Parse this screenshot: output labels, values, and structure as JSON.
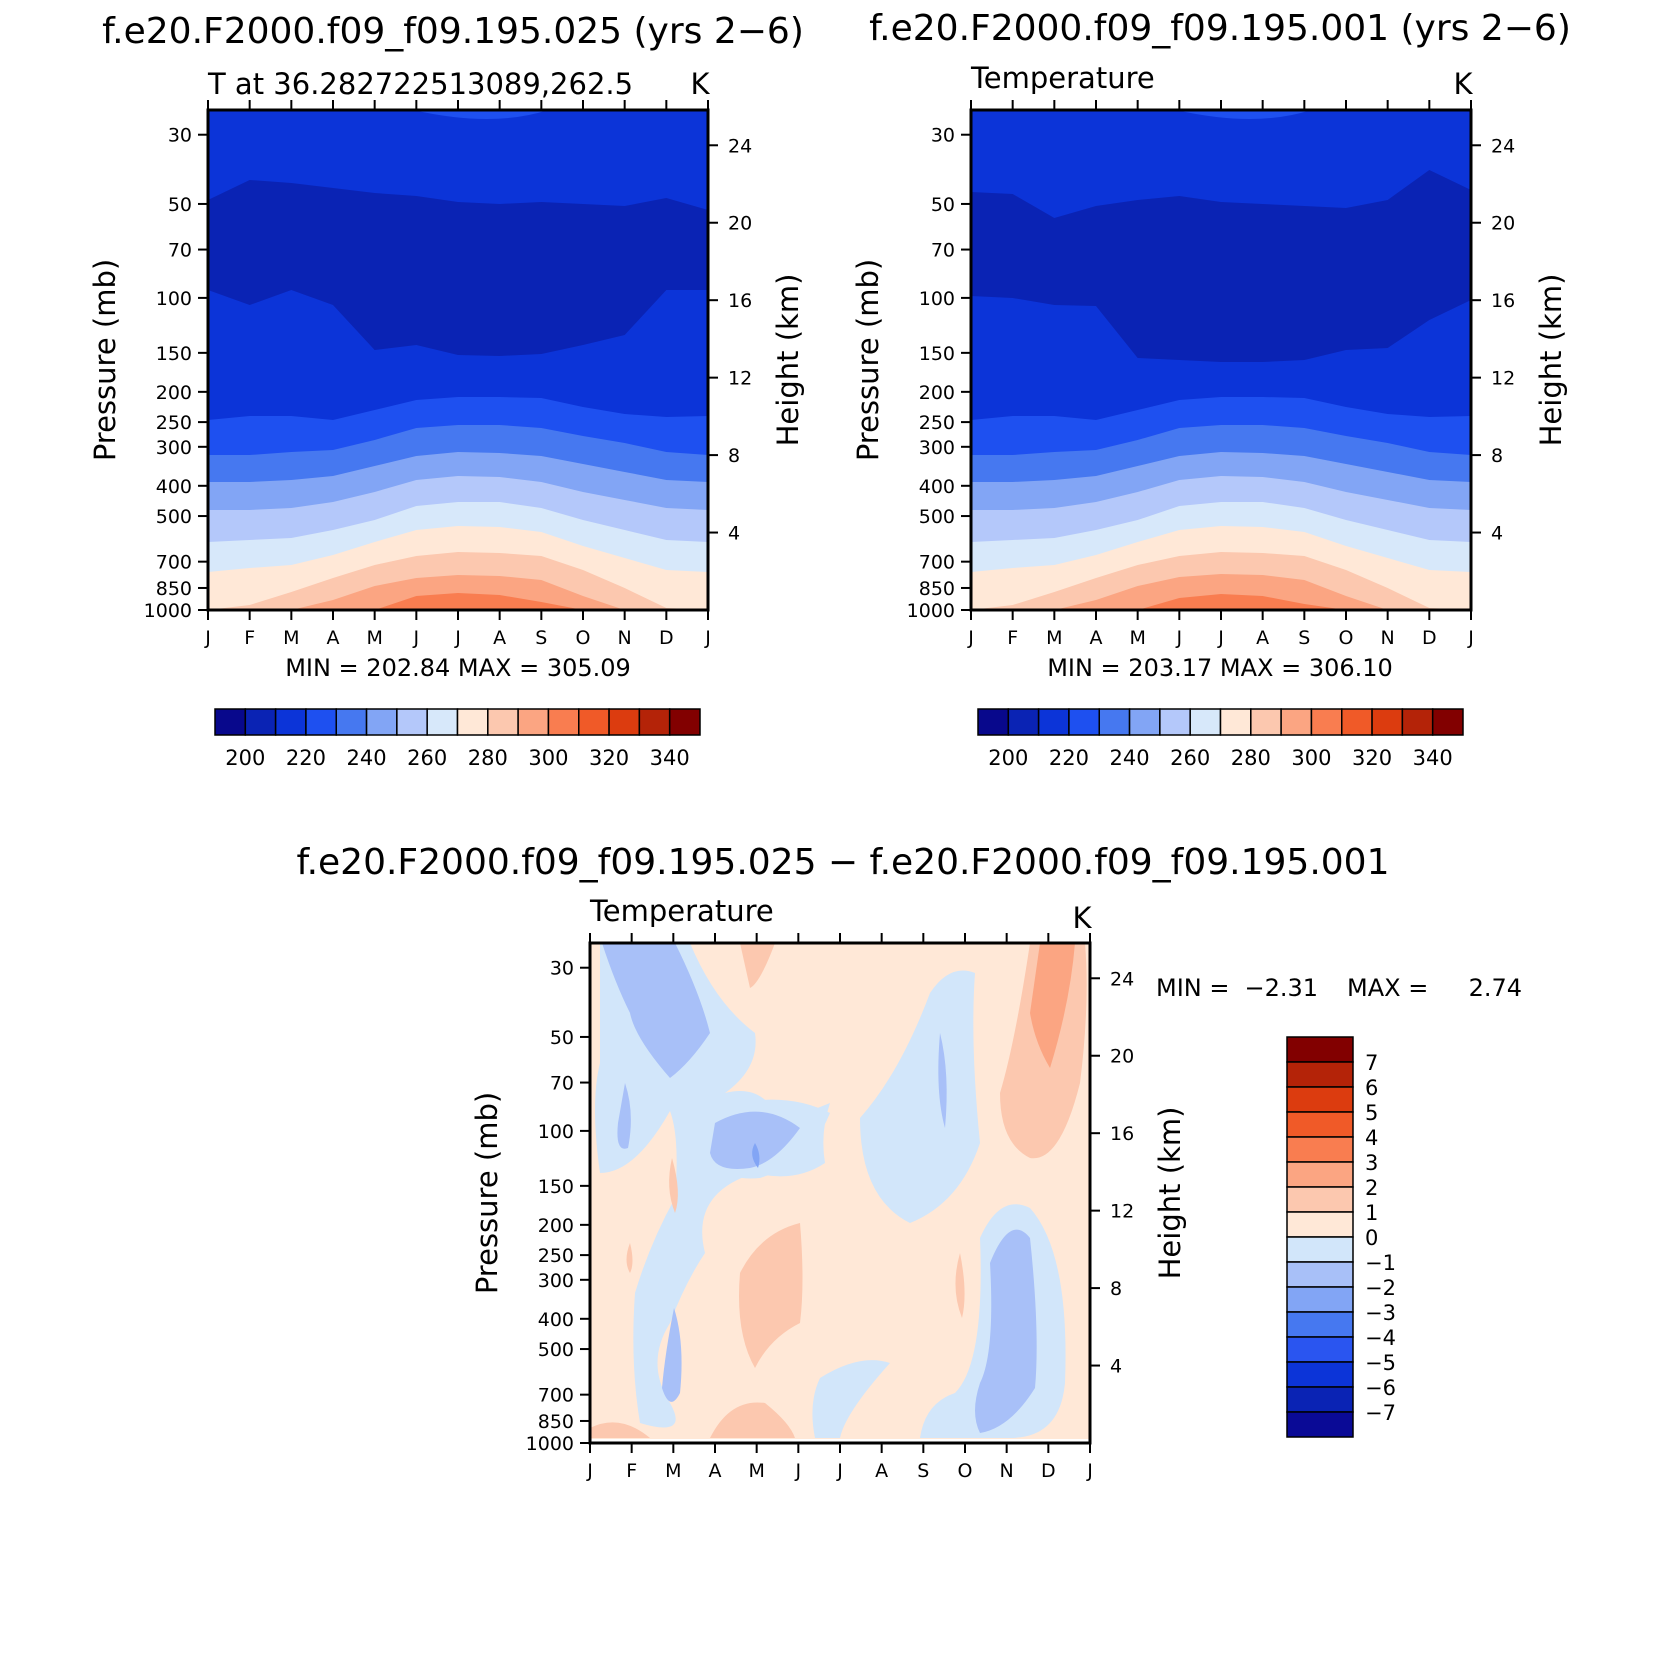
{
  "panels": {
    "left": {
      "title": "f.e20.F2000.f09_f09.195.025 (yrs 2−6)",
      "subtitle": "T at 36.282722513089,262.5",
      "units": "K",
      "ylabel": "Pressure (mb)",
      "ylabel_right": "Height (km)",
      "stats": "MIN = 202.84 MAX = 305.09"
    },
    "right": {
      "title": "f.e20.F2000.f09_f09.195.001 (yrs 2−6)",
      "subtitle": "Temperature",
      "units": "K",
      "ylabel": "Pressure (mb)",
      "ylabel_right": "Height (km)",
      "stats": "MIN = 203.17 MAX = 306.10"
    },
    "diff": {
      "title": "f.e20.F2000.f09_f09.195.025 − f.e20.F2000.f09_f09.195.001",
      "subtitle": "Temperature",
      "units": "K",
      "ylabel": "Pressure (mb)",
      "ylabel_right": "Height (km)",
      "min_label": "MIN =",
      "min_value": "−2.31",
      "max_label": "MAX =",
      "max_value": "2.74"
    }
  },
  "colors": {
    "temp_palette": [
      "#08088c",
      "#0a23b4",
      "#0c34d8",
      "#1e50f0",
      "#4678f0",
      "#82a5f5",
      "#b4c8fa",
      "#d7e8fa",
      "#ffe8d7",
      "#fcc8af",
      "#fba582",
      "#f97d50",
      "#f05a28",
      "#dc3c0f",
      "#b42308",
      "#820000"
    ],
    "diff_palette": [
      "#0a0a96",
      "#0a23b4",
      "#0c34d8",
      "#2a55f0",
      "#4678f0",
      "#82a5f5",
      "#a8c0f8",
      "#d2e6fa",
      "#ffe8d7",
      "#fcc8af",
      "#fba582",
      "#f97d50",
      "#f05a28",
      "#dc3c0f",
      "#b42308",
      "#820000"
    ]
  },
  "chart_data": [
    {
      "type": "heatmap",
      "name": "left",
      "x": [
        "J",
        "F",
        "M",
        "A",
        "M",
        "J",
        "J",
        "A",
        "S",
        "O",
        "N",
        "D",
        "J"
      ],
      "y_pressure_ticks": [
        30,
        50,
        70,
        100,
        150,
        200,
        250,
        300,
        400,
        500,
        700,
        850,
        1000
      ],
      "y_height_ticks": [
        4,
        8,
        12,
        16,
        20,
        24
      ],
      "ylim_mb": [
        1000,
        25
      ],
      "colorbar_ticks": [
        "200",
        "220",
        "240",
        "260",
        "280",
        "300",
        "320",
        "340"
      ],
      "colorbar_levels": [
        190,
        200,
        210,
        220,
        230,
        240,
        250,
        260,
        270,
        280,
        290,
        300,
        310,
        320,
        330,
        340,
        350
      ],
      "min": 202.84,
      "max": 305.09
    },
    {
      "type": "heatmap",
      "name": "right",
      "x": [
        "J",
        "F",
        "M",
        "A",
        "M",
        "J",
        "J",
        "A",
        "S",
        "O",
        "N",
        "D",
        "J"
      ],
      "y_pressure_ticks": [
        30,
        50,
        70,
        100,
        150,
        200,
        250,
        300,
        400,
        500,
        700,
        850,
        1000
      ],
      "y_height_ticks": [
        4,
        8,
        12,
        16,
        20,
        24
      ],
      "ylim_mb": [
        1000,
        25
      ],
      "colorbar_ticks": [
        "200",
        "220",
        "240",
        "260",
        "280",
        "300",
        "320",
        "340"
      ],
      "colorbar_levels": [
        190,
        200,
        210,
        220,
        230,
        240,
        250,
        260,
        270,
        280,
        290,
        300,
        310,
        320,
        330,
        340,
        350
      ],
      "min": 203.17,
      "max": 306.1
    },
    {
      "type": "heatmap",
      "name": "difference",
      "x": [
        "J",
        "F",
        "M",
        "A",
        "M",
        "J",
        "J",
        "A",
        "S",
        "O",
        "N",
        "D",
        "J"
      ],
      "y_pressure_ticks": [
        30,
        50,
        70,
        100,
        150,
        200,
        250,
        300,
        400,
        500,
        700,
        850,
        1000
      ],
      "y_height_ticks": [
        4,
        8,
        12,
        16,
        20,
        24
      ],
      "ylim_mb": [
        1000,
        25
      ],
      "colorbar_ticks": [
        "7",
        "6",
        "5",
        "4",
        "3",
        "2",
        "1",
        "0",
        "−1",
        "−2",
        "−3",
        "−4",
        "−5",
        "−6",
        "−7"
      ],
      "min": -2.31,
      "max": 2.74
    }
  ]
}
